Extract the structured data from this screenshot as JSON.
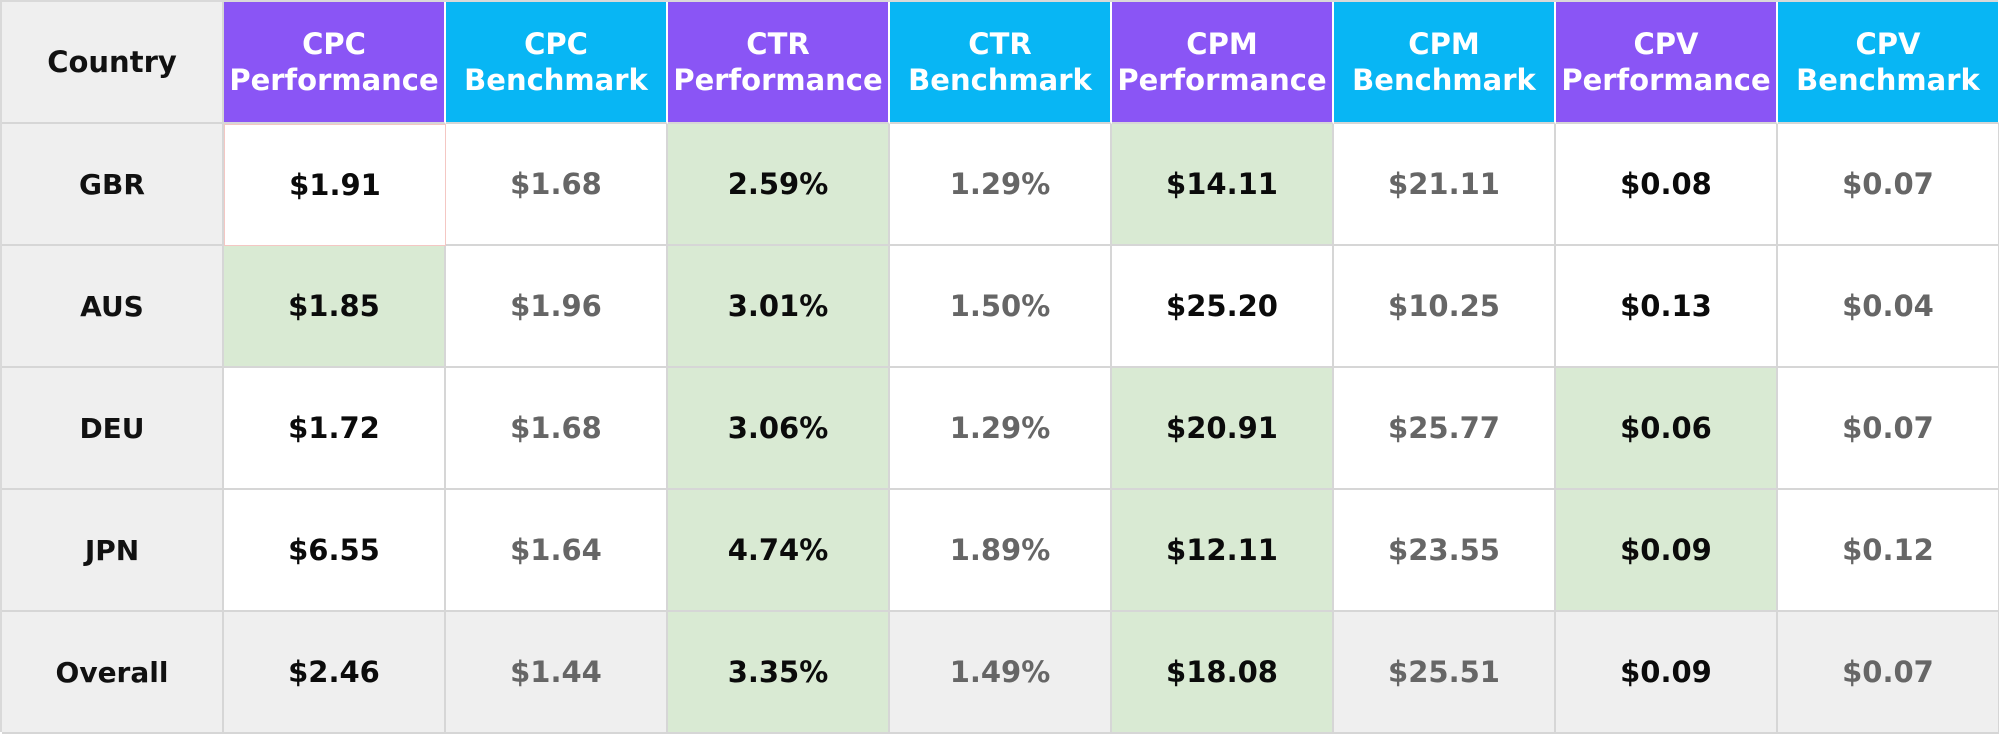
{
  "table": {
    "corner_label": "Country",
    "headers": [
      {
        "line1": "CPC",
        "line2": "Performance",
        "kind": "perf"
      },
      {
        "line1": "CPC",
        "line2": "Benchmark",
        "kind": "bench"
      },
      {
        "line1": "CTR",
        "line2": "Performance",
        "kind": "perf"
      },
      {
        "line1": "CTR",
        "line2": "Benchmark",
        "kind": "bench"
      },
      {
        "line1": "CPM",
        "line2": "Performance",
        "kind": "perf"
      },
      {
        "line1": "CPM",
        "line2": "Benchmark",
        "kind": "bench"
      },
      {
        "line1": "CPV",
        "line2": "Performance",
        "kind": "perf"
      },
      {
        "line1": "CPV",
        "line2": "Benchmark",
        "kind": "bench"
      }
    ],
    "rows": [
      {
        "country": "GBR",
        "values": [
          "$1.91",
          "$1.68",
          "2.59%",
          "1.29%",
          "$14.11",
          "$21.11",
          "$0.08",
          "$0.07"
        ],
        "highlight": [
          false,
          false,
          true,
          false,
          true,
          false,
          false,
          false
        ]
      },
      {
        "country": "AUS",
        "values": [
          "$1.85",
          "$1.96",
          "3.01%",
          "1.50%",
          "$25.20",
          "$10.25",
          "$0.13",
          "$0.04"
        ],
        "highlight": [
          true,
          false,
          true,
          false,
          false,
          false,
          false,
          false
        ]
      },
      {
        "country": "DEU",
        "values": [
          "$1.72",
          "$1.68",
          "3.06%",
          "1.29%",
          "$20.91",
          "$25.77",
          "$0.06",
          "$0.07"
        ],
        "highlight": [
          false,
          false,
          true,
          false,
          true,
          false,
          true,
          false
        ]
      },
      {
        "country": "JPN",
        "values": [
          "$6.55",
          "$1.64",
          "4.74%",
          "1.89%",
          "$12.11",
          "$23.55",
          "$0.09",
          "$0.12"
        ],
        "highlight": [
          false,
          false,
          true,
          false,
          true,
          false,
          true,
          false
        ]
      },
      {
        "country": "Overall",
        "values": [
          "$2.46",
          "$1.44",
          "3.35%",
          "1.49%",
          "$18.08",
          "$25.51",
          "$0.09",
          "$0.07"
        ],
        "highlight": [
          false,
          false,
          true,
          false,
          true,
          false,
          false,
          false
        ]
      }
    ]
  },
  "colors": {
    "performance_header": "#8a55f5",
    "benchmark_header": "#08b6f4",
    "highlight_green": "#d9ead3",
    "row_header_gray": "#efefef"
  }
}
